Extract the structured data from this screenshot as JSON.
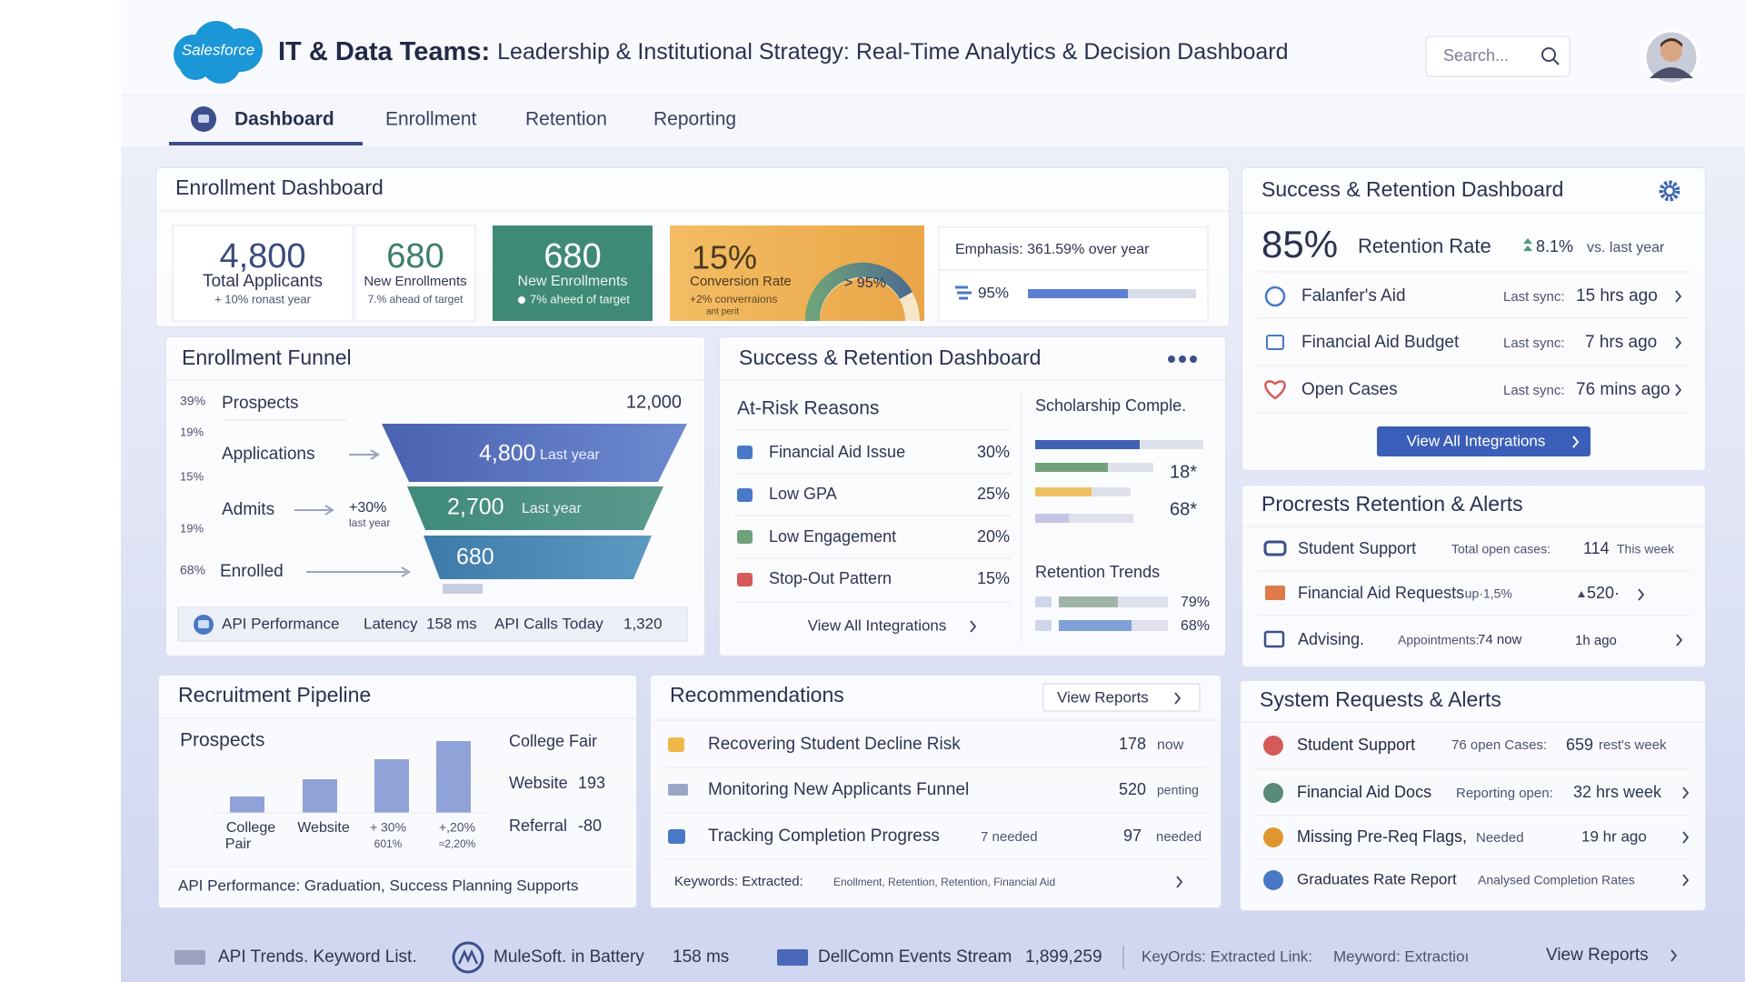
{
  "header": {
    "logo": "Salesforce",
    "title_strong": "IT & Data Teams:",
    "title": "Leadership & Institutional Strategy: Real-Time Analytics & Decision Dashboard",
    "search": "Search..."
  },
  "nav": {
    "tabs": [
      "Dashboard",
      "Enrollment",
      "Retention",
      "Reporting"
    ]
  },
  "enrollment": {
    "title": "Enrollment Dashboard",
    "kpis": [
      {
        "value": "4,800",
        "label": "Total Applicants",
        "note": "+ 10% ronast year"
      },
      {
        "value": "680",
        "label": "New Enrollments",
        "note": "7.% ahead of target"
      },
      {
        "value": "680",
        "label": "New Enrollments",
        "note": "7% aheed of target"
      },
      {
        "value": "15%",
        "label": "Conversion Rate",
        "note": "+2% converraions",
        "note2": "ant perit",
        "gauge": "> 95%"
      }
    ],
    "emphasis": "Emphasis: 361.59% over year",
    "progress": "95%"
  },
  "funnel": {
    "title": "Enrollment Funnel",
    "percents": [
      "39%",
      "19%",
      "15%",
      "19%",
      "68%"
    ],
    "stages": [
      {
        "label": "Prospects",
        "value": "12,000"
      },
      {
        "label": "Applications",
        "value": "4,800",
        "note": "Last year"
      },
      {
        "label": "Admits",
        "value": "2,700",
        "note": "Last year",
        "change": "+30%",
        "change_note": "last year"
      },
      {
        "label": "Enrolled",
        "value": "680"
      }
    ],
    "footer": {
      "title": "API Performance",
      "latency_label": "Latency",
      "latency": "158 ms",
      "calls_label": "API Calls Today",
      "calls": "1,320"
    }
  },
  "risk": {
    "title": "Success & Retention Dashboard",
    "reasons_title": "At-Risk Reasons",
    "reasons": [
      {
        "label": "Financial Aid Issue",
        "value": "30%"
      },
      {
        "label": "Low GPA",
        "value": "25%"
      },
      {
        "label": "Low Engagement",
        "value": "20%"
      },
      {
        "label": "Stop-Out Pattern",
        "value": "15%"
      }
    ],
    "scholarship_title": "Scholarship Comple.",
    "scholarship_values": [
      "18*",
      "68*"
    ],
    "trends_title": "Retention Trends",
    "trends": [
      "79%",
      "68%"
    ],
    "link": "View All Integrations"
  },
  "retention": {
    "title": "Success & Retention Dashboard",
    "rate": "85%",
    "rate_label": "Retention Rate",
    "change": "8.1%",
    "change_note": "vs. last year",
    "items": [
      {
        "label": "Falanfer's Aid",
        "sync_label": "Last sync:",
        "sync": "15 hrs ago"
      },
      {
        "label": "Financial Aid Budget",
        "sync_label": "Last sync:",
        "sync": "7 hrs ago"
      },
      {
        "label": "Open Cases",
        "sync_label": "Last sync:",
        "sync": "76 mins ago"
      }
    ],
    "button": "View All Integrations"
  },
  "alerts": {
    "title": "Procrests Retention & Alerts",
    "items": [
      {
        "label": "Student Support",
        "detail": "Total open cases:",
        "value": "114",
        "note": "This week"
      },
      {
        "label": "Financial Aid Requests",
        "detail": "·up·1,5%",
        "value": "520·"
      },
      {
        "label": "Advising.",
        "detail": "Appointments:",
        "value": "74 now",
        "note": "1h ago"
      }
    ]
  },
  "pipeline": {
    "title": "Recruitment Pipeline",
    "subtitle": "Prospects",
    "bar_labels": [
      {
        "line1": "College",
        "line2": "Pair"
      },
      {
        "line1": "Website"
      },
      {
        "line1": "+ 30%",
        "line2": "601%"
      },
      {
        "line1": "+,20%",
        "line2": "≈2,20%"
      }
    ],
    "sources": [
      {
        "label": "College Fair"
      },
      {
        "label": "Website",
        "value": "193"
      },
      {
        "label": "Referral",
        "value": "-80"
      }
    ],
    "footer": "API Performance: Graduation, Success Planning Supports"
  },
  "recommendations": {
    "title": "Recommendations",
    "button": "View Reports",
    "items": [
      {
        "label": "Recovering Student Decline Risk",
        "value": "178",
        "note": "now"
      },
      {
        "label": "Monitoring New Applicants Funnel",
        "value": "520",
        "note": "penting"
      },
      {
        "label": "Tracking Completion Progress",
        "detail": "7 needed",
        "value": "97",
        "note": "needed"
      }
    ],
    "keywords_label": "Keywords: Extracted:",
    "keywords": "Enollment, Retention, Retention, Financial Aid"
  },
  "system": {
    "title": "System Requests & Alerts",
    "items": [
      {
        "label": "Student Support",
        "detail": "76 open Cases:",
        "value": "659",
        "note": "rest's week"
      },
      {
        "label": "Financial Aid Docs",
        "detail": "Reporting open:",
        "value": "32 hrs week"
      },
      {
        "label": "Missing Pre-Req Flags,",
        "detail": "Needed",
        "value": "19 hr ago"
      },
      {
        "label": "Graduates Rate Report",
        "detail": "Analysed Completion Rates"
      }
    ]
  },
  "footer": {
    "items": [
      "API Trends. Keyword List.",
      "MuleSoft. in Battery",
      "158 ms",
      "DellComn Events Stream",
      "1,899,259",
      "KeyOrds: Extracted Link:",
      "Meyword: Extractioı"
    ],
    "link": "View Reports"
  }
}
